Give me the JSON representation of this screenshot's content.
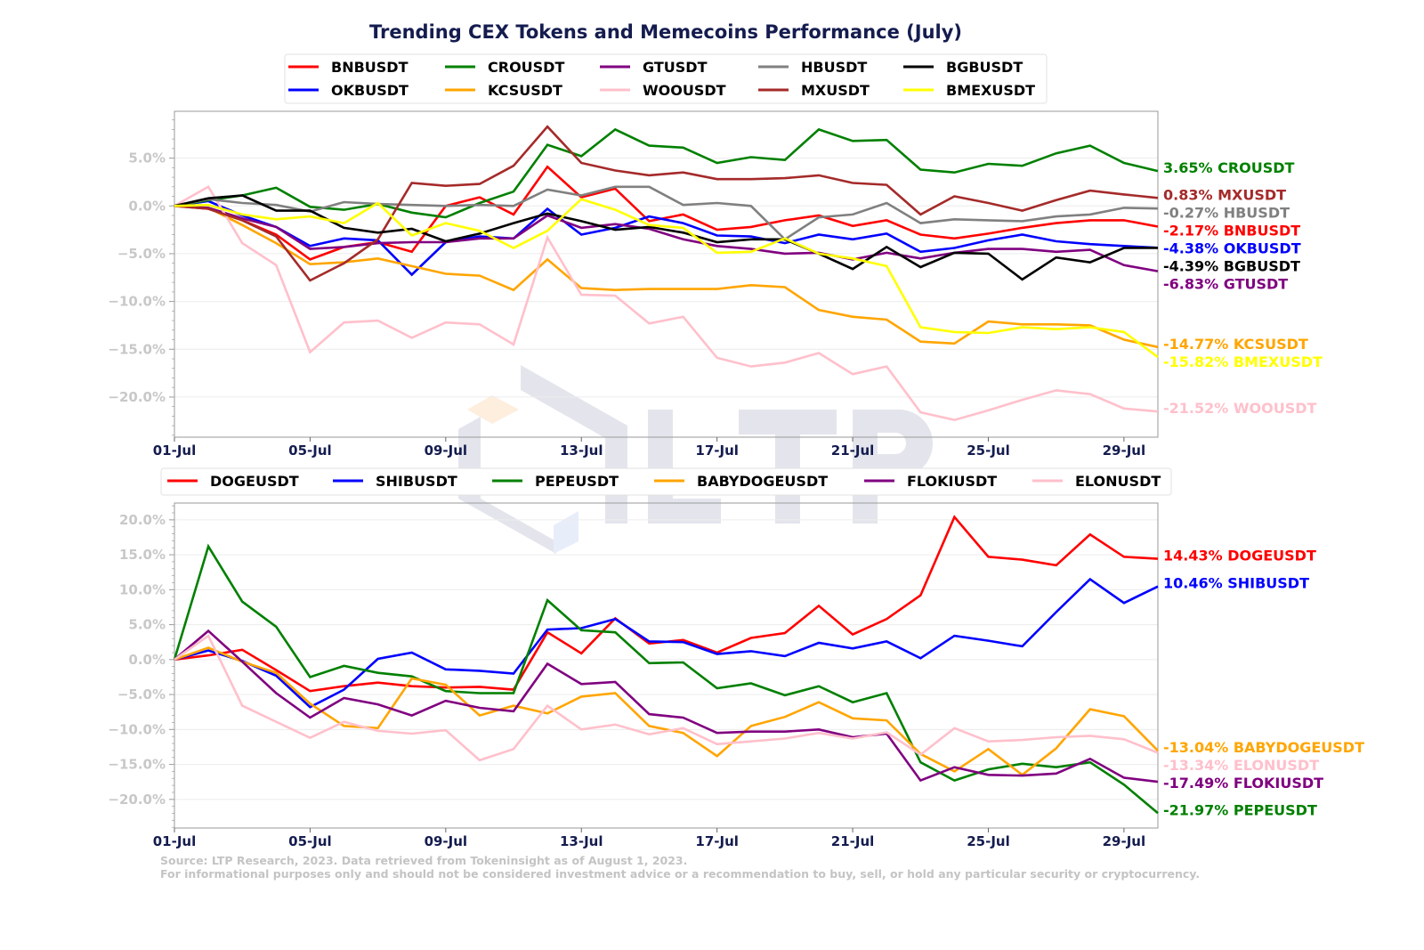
{
  "chart_data": [
    {
      "type": "line",
      "title": "Trending CEX Tokens and Memecoins Performance (July)",
      "x": [
        "01-Jul",
        "02-Jul",
        "03-Jul",
        "04-Jul",
        "05-Jul",
        "06-Jul",
        "07-Jul",
        "08-Jul",
        "09-Jul",
        "10-Jul",
        "11-Jul",
        "12-Jul",
        "13-Jul",
        "14-Jul",
        "15-Jul",
        "16-Jul",
        "17-Jul",
        "18-Jul",
        "19-Jul",
        "20-Jul",
        "21-Jul",
        "22-Jul",
        "23-Jul",
        "24-Jul",
        "25-Jul",
        "26-Jul",
        "27-Jul",
        "28-Jul",
        "29-Jul",
        "30-Jul"
      ],
      "x_tick_labels": [
        "01-Jul",
        "05-Jul",
        "09-Jul",
        "13-Jul",
        "17-Jul",
        "21-Jul",
        "25-Jul",
        "29-Jul"
      ],
      "y_tick_labels": [
        "−20.0%",
        "−15.0%",
        "−10.0%",
        "−5.0%",
        "0.0%",
        "5.0%"
      ],
      "y_ticks": [
        -20,
        -15,
        -10,
        -5,
        0,
        5
      ],
      "ylim": [
        -24.2,
        9.9
      ],
      "y_unit": "%",
      "grid": true,
      "legend_placement": "top-center",
      "series": [
        {
          "name": "BNBUSDT",
          "color": "#ff0000",
          "end_label": "-2.17% BNBUSDT",
          "values": [
            0,
            -0.3,
            -1.5,
            -3.0,
            -5.6,
            -4.3,
            -3.8,
            -4.8,
            0.0,
            0.9,
            -0.9,
            4.1,
            0.9,
            1.8,
            -1.6,
            -0.9,
            -2.5,
            -2.2,
            -1.5,
            -1.0,
            -2.1,
            -1.5,
            -3.0,
            -3.4,
            -2.9,
            -2.3,
            -1.8,
            -1.5,
            -1.5,
            -2.17
          ]
        },
        {
          "name": "OKBUSDT",
          "color": "#0000ff",
          "end_label": "-4.38% OKBUSDT",
          "values": [
            0,
            0.5,
            -1.0,
            -2.2,
            -4.2,
            -3.4,
            -3.6,
            -7.2,
            -3.8,
            -3.2,
            -3.4,
            -0.3,
            -3.0,
            -2.3,
            -1.1,
            -1.8,
            -3.1,
            -3.2,
            -3.9,
            -3.0,
            -3.5,
            -2.9,
            -4.8,
            -4.4,
            -3.6,
            -3.0,
            -3.7,
            -4.0,
            -4.2,
            -4.38
          ]
        },
        {
          "name": "CROUSDT",
          "color": "#008000",
          "end_label": "3.65% CROUSDT",
          "values": [
            0,
            0.6,
            1.1,
            1.9,
            -0.1,
            -0.4,
            0.2,
            -0.7,
            -1.2,
            0.3,
            1.5,
            6.4,
            5.2,
            8.0,
            6.3,
            6.1,
            4.5,
            5.1,
            4.8,
            8.0,
            6.8,
            6.9,
            3.8,
            3.5,
            4.4,
            4.2,
            5.5,
            6.3,
            4.5,
            3.65
          ]
        },
        {
          "name": "KCSUSDT",
          "color": "#ffa500",
          "end_label": "-14.77% KCSUSDT",
          "values": [
            0,
            -0.2,
            -2.0,
            -3.9,
            -6.1,
            -5.9,
            -5.5,
            -6.3,
            -7.1,
            -7.3,
            -8.8,
            -5.6,
            -8.6,
            -8.8,
            -8.7,
            -8.7,
            -8.7,
            -8.3,
            -8.5,
            -10.9,
            -11.6,
            -11.9,
            -14.2,
            -14.4,
            -12.1,
            -12.4,
            -12.4,
            -12.5,
            -14.0,
            -14.77
          ]
        },
        {
          "name": "GTUSDT",
          "color": "#800080",
          "end_label": "-6.83% GTUSDT",
          "values": [
            0,
            -0.2,
            -1.3,
            -2.2,
            -4.5,
            -4.3,
            -3.9,
            -3.8,
            -3.8,
            -3.4,
            -3.4,
            -1.0,
            -2.3,
            -1.9,
            -2.4,
            -3.5,
            -4.2,
            -4.5,
            -5.0,
            -4.9,
            -5.6,
            -4.9,
            -5.5,
            -4.9,
            -4.5,
            -4.5,
            -4.8,
            -4.6,
            -6.2,
            -6.83
          ]
        },
        {
          "name": "WOOUSDT",
          "color": "#ffc0cb",
          "end_label": "-21.52% WOOUSDT",
          "values": [
            0,
            2.0,
            -3.9,
            -6.2,
            -15.3,
            -12.2,
            -12.0,
            -13.8,
            -12.2,
            -12.4,
            -14.5,
            -3.3,
            -9.3,
            -9.4,
            -12.3,
            -11.6,
            -15.9,
            -16.8,
            -16.4,
            -15.4,
            -17.6,
            -16.8,
            -21.6,
            -22.4,
            -21.4,
            -20.3,
            -19.3,
            -19.7,
            -21.2,
            -21.52
          ]
        },
        {
          "name": "HBUSDT",
          "color": "#808080",
          "end_label": "-0.27% HBUSDT",
          "values": [
            0,
            0.7,
            0.3,
            0.1,
            -0.6,
            0.4,
            0.2,
            0.1,
            0.0,
            0.1,
            0.0,
            1.7,
            1.1,
            2.0,
            2.0,
            0.1,
            0.3,
            0.0,
            -3.5,
            -1.2,
            -0.9,
            0.3,
            -1.8,
            -1.4,
            -1.5,
            -1.6,
            -1.1,
            -0.9,
            -0.2,
            -0.27
          ]
        },
        {
          "name": "MXUSDT",
          "color": "#a52a2a",
          "end_label": "0.83% MXUSDT",
          "values": [
            0,
            -0.3,
            -1.5,
            -3.2,
            -7.8,
            -6.0,
            -3.5,
            2.4,
            2.1,
            2.3,
            4.2,
            8.3,
            4.5,
            3.7,
            3.2,
            3.5,
            2.8,
            2.8,
            2.9,
            3.2,
            2.4,
            2.2,
            -0.9,
            1.0,
            0.3,
            -0.5,
            0.6,
            1.6,
            1.2,
            0.83
          ]
        },
        {
          "name": "BGBUSDT",
          "color": "#000000",
          "end_label": "-4.39% BGBUSDT",
          "values": [
            0,
            0.8,
            1.1,
            -0.5,
            -0.5,
            -2.3,
            -2.8,
            -2.4,
            -3.7,
            -2.9,
            -1.8,
            -0.8,
            -1.6,
            -2.5,
            -2.2,
            -2.8,
            -3.8,
            -3.5,
            -3.5,
            -5.0,
            -6.6,
            -4.3,
            -6.4,
            -4.9,
            -5.0,
            -7.7,
            -5.4,
            -5.9,
            -4.4,
            -4.39
          ]
        },
        {
          "name": "BMEXUSDT",
          "color": "#ffff00",
          "end_label": "-15.82% BMEXUSDT",
          "values": [
            0,
            0.1,
            -0.9,
            -1.4,
            -1.1,
            -1.8,
            0.3,
            -3.1,
            -1.8,
            -2.6,
            -4.4,
            -2.6,
            0.7,
            -0.4,
            -2.0,
            -2.3,
            -4.9,
            -4.8,
            -3.4,
            -5.0,
            -5.5,
            -6.3,
            -12.7,
            -13.2,
            -13.3,
            -12.7,
            -12.9,
            -12.7,
            -13.2,
            -15.82
          ]
        }
      ]
    },
    {
      "type": "line",
      "x": [
        "01-Jul",
        "02-Jul",
        "03-Jul",
        "04-Jul",
        "05-Jul",
        "06-Jul",
        "07-Jul",
        "08-Jul",
        "09-Jul",
        "10-Jul",
        "11-Jul",
        "12-Jul",
        "13-Jul",
        "14-Jul",
        "15-Jul",
        "16-Jul",
        "17-Jul",
        "18-Jul",
        "19-Jul",
        "20-Jul",
        "21-Jul",
        "22-Jul",
        "23-Jul",
        "24-Jul",
        "25-Jul",
        "26-Jul",
        "27-Jul",
        "28-Jul",
        "29-Jul",
        "30-Jul"
      ],
      "x_tick_labels": [
        "01-Jul",
        "05-Jul",
        "09-Jul",
        "13-Jul",
        "17-Jul",
        "21-Jul",
        "25-Jul",
        "29-Jul"
      ],
      "y_tick_labels": [
        "−20.0%",
        "−15.0%",
        "−10.0%",
        "−5.0%",
        "0.0%",
        "5.0%",
        "10.0%",
        "15.0%",
        "20.0%"
      ],
      "y_ticks": [
        -20,
        -15,
        -10,
        -5,
        0,
        5,
        10,
        15,
        20
      ],
      "ylim": [
        -24.1,
        22.4
      ],
      "y_unit": "%",
      "grid": true,
      "legend_placement": "top-center",
      "series": [
        {
          "name": "DOGEUSDT",
          "color": "#ff0000",
          "end_label": "14.43% DOGEUSDT",
          "values": [
            0,
            0.6,
            1.4,
            -1.5,
            -4.5,
            -3.8,
            -3.3,
            -3.8,
            -4.0,
            -3.9,
            -4.3,
            3.9,
            0.9,
            5.9,
            2.3,
            2.8,
            1.0,
            3.1,
            3.8,
            7.7,
            3.6,
            5.8,
            9.2,
            20.4,
            14.7,
            14.3,
            13.5,
            17.9,
            14.7,
            14.43
          ]
        },
        {
          "name": "SHIBUSDT",
          "color": "#0000ff",
          "end_label": "10.46% SHIBUSDT",
          "values": [
            0,
            1.3,
            -0.2,
            -2.3,
            -6.8,
            -4.3,
            0.1,
            1.0,
            -1.4,
            -1.6,
            -2.0,
            4.3,
            4.5,
            5.8,
            2.6,
            2.5,
            0.8,
            1.2,
            0.5,
            2.4,
            1.6,
            2.6,
            0.2,
            3.4,
            2.7,
            1.9,
            6.8,
            11.5,
            8.1,
            10.46
          ]
        },
        {
          "name": "PEPEUSDT",
          "color": "#008000",
          "end_label": "-21.97% PEPEUSDT",
          "values": [
            0,
            16.2,
            8.3,
            4.7,
            -2.5,
            -0.9,
            -1.9,
            -2.4,
            -4.5,
            -4.8,
            -4.8,
            8.5,
            4.2,
            3.9,
            -0.5,
            -0.4,
            -4.1,
            -3.4,
            -5.1,
            -3.8,
            -6.1,
            -4.8,
            -14.7,
            -17.3,
            -15.7,
            -14.9,
            -15.4,
            -14.7,
            -17.9,
            -21.97
          ]
        },
        {
          "name": "BABYDOGEUSDT",
          "color": "#ffa500",
          "end_label": "-13.04% BABYDOGEUSDT",
          "values": [
            0,
            1.7,
            -0.3,
            -1.9,
            -6.3,
            -9.5,
            -9.8,
            -2.7,
            -3.6,
            -8.0,
            -6.6,
            -7.7,
            -5.3,
            -4.8,
            -9.5,
            -10.5,
            -13.8,
            -9.5,
            -8.2,
            -6.1,
            -8.4,
            -8.7,
            -13.5,
            -16.0,
            -12.8,
            -16.5,
            -12.7,
            -7.1,
            -8.1,
            -13.04
          ]
        },
        {
          "name": "FLOKIUSDT",
          "color": "#800080",
          "end_label": "-17.49% FLOKIUSDT",
          "values": [
            0,
            4.1,
            -0.3,
            -4.8,
            -8.3,
            -5.5,
            -6.4,
            -8.0,
            -5.9,
            -6.9,
            -7.4,
            -0.6,
            -3.5,
            -3.2,
            -7.8,
            -8.3,
            -10.5,
            -10.3,
            -10.3,
            -10.0,
            -11.1,
            -10.6,
            -17.3,
            -15.4,
            -16.5,
            -16.6,
            -16.3,
            -14.2,
            -16.9,
            -17.49
          ]
        },
        {
          "name": "ELONUSDT",
          "color": "#ffc0cb",
          "end_label": "-13.34% ELONUSDT",
          "values": [
            0,
            3.4,
            -6.6,
            -8.9,
            -11.2,
            -8.9,
            -10.2,
            -10.6,
            -10.1,
            -14.4,
            -12.8,
            -6.6,
            -10.0,
            -9.3,
            -10.7,
            -9.8,
            -12.1,
            -11.7,
            -11.3,
            -10.5,
            -11.3,
            -10.4,
            -13.6,
            -9.8,
            -11.7,
            -11.5,
            -11.1,
            -10.9,
            -11.4,
            -13.34
          ]
        }
      ]
    }
  ],
  "footnote": {
    "line1": "Source: LTP Research, 2023. Data retrieved from Tokeninsight as of August 1, 2023.",
    "line2": "For informational purposes only and should not be considered investment advice or a recommendation to buy, sell, or hold any particular security or cryptocurrency."
  },
  "watermark": {
    "text": "LTP"
  },
  "colors": {
    "title": "#141c4f",
    "x_tick": "#141c4f",
    "y_tick": "#c8c8c8",
    "grid": "#ececec",
    "footnote": "#c4c4c4",
    "watermark": "#e4e5ec"
  }
}
